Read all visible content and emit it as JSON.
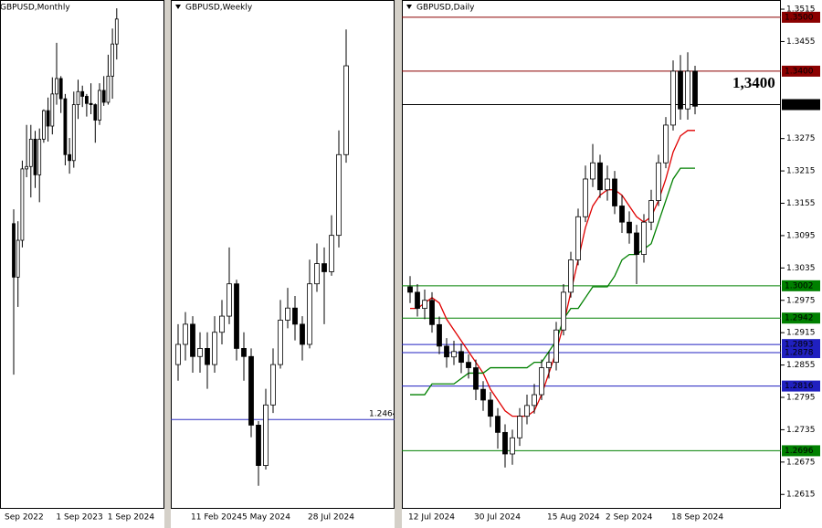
{
  "chart_data": [
    {
      "type": "candlestick",
      "title": "GBPUSD,Monthly",
      "categories": [
        "Sep 2022",
        null,
        null,
        null,
        null,
        null,
        null,
        null,
        null,
        null,
        null,
        null,
        "1 Sep 2023",
        null,
        null,
        null,
        null,
        null,
        null,
        null,
        null,
        null,
        null,
        null,
        "1 Sep 2024"
      ],
      "open": [
        1.162,
        1.117,
        1.148,
        1.208,
        1.21,
        1.233,
        1.203,
        1.233,
        1.257,
        1.244,
        1.271,
        1.284,
        1.267,
        1.22,
        1.215,
        1.262,
        1.273,
        1.269,
        1.263,
        1.262,
        1.249,
        1.274,
        1.264,
        1.286,
        1.313
      ],
      "high": [
        1.174,
        1.164,
        1.215,
        1.245,
        1.245,
        1.24,
        1.242,
        1.258,
        1.268,
        1.285,
        1.314,
        1.286,
        1.271,
        1.234,
        1.273,
        1.283,
        1.278,
        1.271,
        1.28,
        1.263,
        1.28,
        1.286,
        1.304,
        1.326,
        1.343
      ],
      "low": [
        1.035,
        1.092,
        1.142,
        1.201,
        1.184,
        1.192,
        1.18,
        1.23,
        1.231,
        1.237,
        1.262,
        1.255,
        1.211,
        1.204,
        1.209,
        1.25,
        1.26,
        1.252,
        1.254,
        1.23,
        1.245,
        1.261,
        1.262,
        1.267,
        1.3
      ],
      "close": [
        1.117,
        1.148,
        1.208,
        1.21,
        1.233,
        1.203,
        1.233,
        1.257,
        1.244,
        1.271,
        1.284,
        1.267,
        1.22,
        1.215,
        1.262,
        1.273,
        1.269,
        1.263,
        1.262,
        1.249,
        1.274,
        1.264,
        1.286,
        1.313,
        1.334
      ],
      "ylim": [
        0.923,
        1.35
      ]
    },
    {
      "type": "candlestick",
      "title": "GBPUSD,Weekly",
      "categories": [
        null,
        null,
        null,
        "11 Feb 2024",
        null,
        null,
        null,
        null,
        null,
        null,
        "5 May 2024",
        null,
        null,
        null,
        null,
        null,
        null,
        null,
        null,
        "28 Jul 2024",
        null,
        null,
        null,
        null
      ],
      "open": [
        1.26,
        1.265,
        1.27,
        1.262,
        1.264,
        1.26,
        1.268,
        1.272,
        1.28,
        1.264,
        1.262,
        1.245,
        1.235,
        1.25,
        1.26,
        1.271,
        1.274,
        1.27,
        1.265,
        1.28,
        1.285,
        1.283,
        1.292,
        1.312
      ],
      "high": [
        1.27,
        1.273,
        1.272,
        1.268,
        1.268,
        1.272,
        1.276,
        1.289,
        1.281,
        1.268,
        1.264,
        1.246,
        1.254,
        1.264,
        1.276,
        1.279,
        1.277,
        1.272,
        1.286,
        1.29,
        1.289,
        1.297,
        1.318,
        1.343
      ],
      "low": [
        1.256,
        1.261,
        1.258,
        1.258,
        1.254,
        1.258,
        1.265,
        1.27,
        1.261,
        1.256,
        1.242,
        1.23,
        1.234,
        1.248,
        1.259,
        1.269,
        1.266,
        1.261,
        1.264,
        1.278,
        1.27,
        1.282,
        1.289,
        1.31
      ],
      "close": [
        1.265,
        1.27,
        1.262,
        1.264,
        1.26,
        1.268,
        1.272,
        1.28,
        1.264,
        1.262,
        1.245,
        1.235,
        1.25,
        1.26,
        1.271,
        1.274,
        1.27,
        1.265,
        1.28,
        1.285,
        1.283,
        1.292,
        1.312,
        1.334
      ],
      "ylim": [
        1.2245,
        1.3503
      ],
      "levels": [
        1.2464
      ],
      "level_colors": [
        "#3030c0"
      ]
    },
    {
      "type": "candlestick",
      "title": "GBPUSD,Daily",
      "categories": [
        null,
        "12 Jul 2024",
        null,
        null,
        null,
        null,
        null,
        null,
        null,
        null,
        "30 Jul 2024",
        null,
        null,
        null,
        null,
        null,
        null,
        null,
        null,
        null,
        "15 Aug 2024",
        null,
        null,
        null,
        null,
        null,
        null,
        null,
        "2 Sep 2024",
        null,
        null,
        null,
        null,
        null,
        null,
        null,
        null,
        "18 Sep 2024",
        null,
        null
      ],
      "open": [
        1.3,
        1.299,
        1.296,
        1.2975,
        1.293,
        1.289,
        1.287,
        1.288,
        1.286,
        1.285,
        1.281,
        1.279,
        1.276,
        1.273,
        1.269,
        1.272,
        1.276,
        1.278,
        1.28,
        1.285,
        1.286,
        1.292,
        1.299,
        1.305,
        1.313,
        1.32,
        1.323,
        1.318,
        1.32,
        1.315,
        1.312,
        1.31,
        1.306,
        1.312,
        1.316,
        1.323,
        1.33,
        1.34,
        1.333,
        1.34
      ],
      "high": [
        1.302,
        1.3005,
        1.2995,
        1.299,
        1.2945,
        1.2905,
        1.29,
        1.2895,
        1.2875,
        1.2865,
        1.2825,
        1.2805,
        1.2775,
        1.2745,
        1.2735,
        1.2775,
        1.28,
        1.282,
        1.2865,
        1.288,
        1.2935,
        1.3005,
        1.3065,
        1.3145,
        1.3225,
        1.3265,
        1.3245,
        1.3225,
        1.3215,
        1.317,
        1.314,
        1.3115,
        1.3135,
        1.318,
        1.3245,
        1.3315,
        1.342,
        1.343,
        1.3435,
        1.341
      ],
      "low": [
        1.297,
        1.2945,
        1.294,
        1.2915,
        1.2875,
        1.285,
        1.2855,
        1.284,
        1.283,
        1.279,
        1.277,
        1.274,
        1.27,
        1.2665,
        1.267,
        1.2705,
        1.2745,
        1.2765,
        1.279,
        1.283,
        1.2845,
        1.291,
        1.298,
        1.304,
        1.312,
        1.3185,
        1.3165,
        1.316,
        1.3135,
        1.31,
        1.308,
        1.3005,
        1.3045,
        1.3105,
        1.315,
        1.322,
        1.329,
        1.331,
        1.331,
        1.332
      ],
      "close": [
        1.299,
        1.296,
        1.2975,
        1.293,
        1.289,
        1.287,
        1.288,
        1.286,
        1.285,
        1.281,
        1.279,
        1.276,
        1.273,
        1.269,
        1.272,
        1.276,
        1.278,
        1.28,
        1.285,
        1.286,
        1.292,
        1.299,
        1.305,
        1.313,
        1.32,
        1.323,
        1.318,
        1.32,
        1.315,
        1.312,
        1.31,
        1.306,
        1.312,
        1.316,
        1.323,
        1.33,
        1.34,
        1.333,
        1.34,
        1.3335
      ],
      "lines": [
        {
          "color": "#e00000",
          "values": [
            1.296,
            1.296,
            1.297,
            1.298,
            1.297,
            1.294,
            1.292,
            1.29,
            1.288,
            1.286,
            1.284,
            1.281,
            1.279,
            1.277,
            1.276,
            1.276,
            1.276,
            1.277,
            1.28,
            1.284,
            1.288,
            1.293,
            1.299,
            1.305,
            1.311,
            1.315,
            1.317,
            1.318,
            1.318,
            1.317,
            1.315,
            1.313,
            1.312,
            1.313,
            1.316,
            1.32,
            1.325,
            1.328,
            1.329,
            1.329
          ]
        },
        {
          "color": "#008000",
          "values": [
            1.28,
            1.28,
            1.28,
            1.282,
            1.282,
            1.282,
            1.282,
            1.283,
            1.284,
            1.284,
            1.284,
            1.285,
            1.285,
            1.285,
            1.285,
            1.285,
            1.285,
            1.286,
            1.286,
            1.288,
            1.29,
            1.294,
            1.296,
            1.296,
            1.298,
            1.3,
            1.3,
            1.3,
            1.302,
            1.305,
            1.306,
            1.306,
            1.307,
            1.308,
            1.312,
            1.316,
            1.32,
            1.322,
            1.322,
            1.322
          ]
        }
      ],
      "ylim": [
        1.259,
        1.3532
      ],
      "yticks": [
        1.3515,
        1.3455,
        1.3275,
        1.3215,
        1.3155,
        1.3095,
        1.3035,
        1.2975,
        1.2915,
        1.2855,
        1.2795,
        1.2735,
        1.2675,
        1.2615
      ],
      "levels": [
        {
          "value": 1.35,
          "label": "1.3500"
        },
        {
          "value": 1.34,
          "label": "1.3400"
        },
        1.3338,
        1.3002,
        1.2942,
        1.2893,
        1.2878,
        1.2816,
        1.2696
      ],
      "level_colors": [
        "#8b0000",
        "#8b0000",
        "#000000",
        "#008000",
        "#008000",
        "#2020c0",
        "#2020c0",
        "#2020c0",
        "#008000"
      ],
      "annotation": "1,3400"
    }
  ]
}
